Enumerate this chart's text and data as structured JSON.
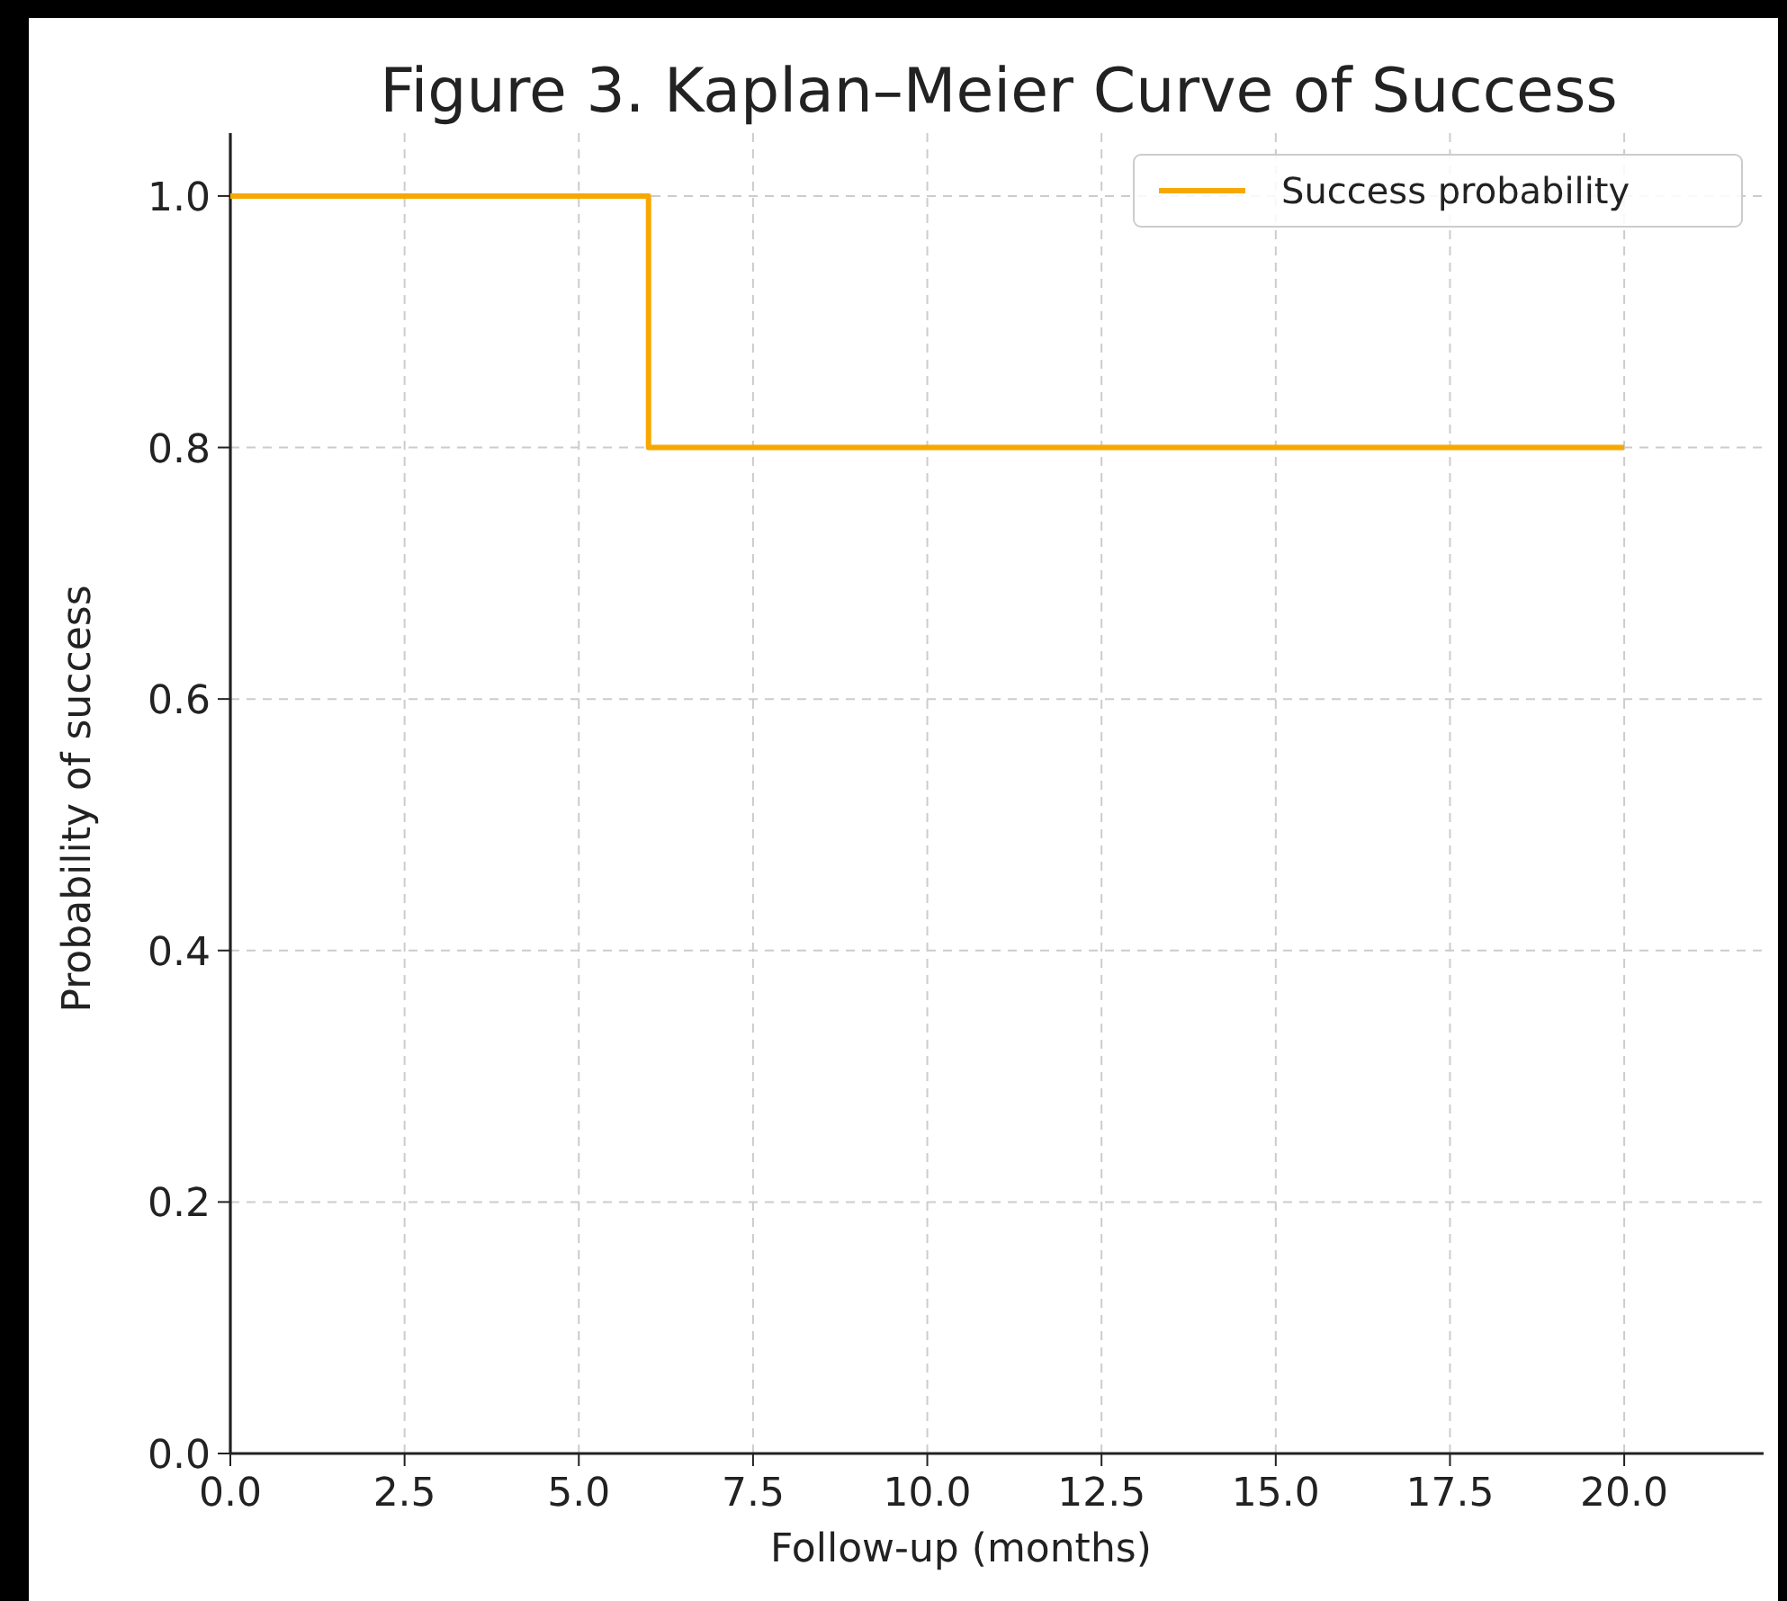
{
  "chart_data": {
    "type": "step",
    "title": "Figure 3. Kaplan–Meier Curve of Success",
    "xlabel": "Follow-up (months)",
    "ylabel": "Probability of success",
    "x": [
      0,
      6,
      20
    ],
    "series": [
      {
        "name": "Success probability",
        "color": "#f7a800",
        "values": [
          1.0,
          0.8,
          0.8
        ]
      }
    ],
    "xlim": [
      0,
      22
    ],
    "ylim": [
      0,
      1.05
    ],
    "xticks": [
      {
        "value": 0,
        "label": "0.0"
      },
      2.5,
      {
        "value": 5,
        "label": "5.0"
      },
      7.5,
      {
        "value": 10,
        "label": "10.0"
      },
      12.5,
      {
        "value": 15,
        "label": "15.0"
      },
      17.5,
      {
        "value": 20,
        "label": "20.0"
      }
    ],
    "yticks": [
      {
        "value": 0,
        "label": "0.0"
      },
      0.2,
      0.4,
      0.6,
      0.8,
      {
        "value": 1,
        "label": "1.0"
      }
    ],
    "grid": true,
    "legend": "top right",
    "line_style": "solid",
    "marker": "none"
  }
}
